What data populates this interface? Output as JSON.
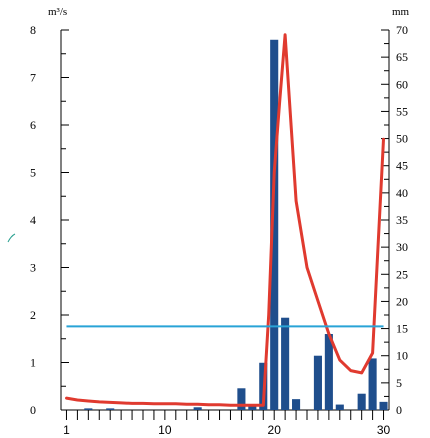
{
  "chart_data": {
    "type": "bar",
    "y_left": {
      "unit": "m³/s",
      "ylim": [
        0,
        8
      ],
      "ticks": [
        0,
        1,
        2,
        3,
        4,
        5,
        6,
        7,
        8
      ]
    },
    "y_right": {
      "unit": "mm",
      "ylim": [
        0,
        70
      ],
      "ticks": [
        0,
        5,
        10,
        15,
        20,
        25,
        30,
        35,
        40,
        45,
        50,
        55,
        60,
        65,
        70
      ]
    },
    "x": {
      "xlim": [
        1,
        30
      ],
      "tick_labels": [
        "1",
        "10",
        "20",
        "30"
      ]
    },
    "series": [
      {
        "type": "bar",
        "axis": "right",
        "color": "#1f4e8c",
        "x": [
          1,
          2,
          3,
          4,
          5,
          6,
          7,
          8,
          9,
          10,
          11,
          12,
          13,
          14,
          15,
          16,
          17,
          18,
          19,
          20,
          21,
          22,
          23,
          24,
          25,
          26,
          27,
          28,
          29,
          30
        ],
        "values": [
          0,
          0,
          0.3,
          0,
          0.3,
          0,
          0,
          0,
          0,
          0,
          0,
          0,
          0.5,
          0,
          0,
          0,
          4,
          1,
          8.7,
          68.2,
          17,
          2,
          0,
          10,
          14,
          1,
          0,
          3,
          9.5,
          1.5
        ]
      },
      {
        "type": "line",
        "axis": "left",
        "color": "#e03a2f",
        "x": [
          1,
          2,
          3,
          4,
          5,
          6,
          7,
          8,
          9,
          10,
          11,
          12,
          13,
          14,
          15,
          16,
          17,
          18,
          19,
          19.5,
          20,
          20.5,
          21,
          22,
          23,
          24,
          25,
          26,
          27,
          28,
          29,
          30
        ],
        "values": [
          0.25,
          0.21,
          0.19,
          0.17,
          0.16,
          0.15,
          0.14,
          0.14,
          0.13,
          0.13,
          0.13,
          0.12,
          0.12,
          0.11,
          0.11,
          0.1,
          0.1,
          0.1,
          0.1,
          2,
          5,
          6.5,
          7.9,
          4.4,
          3,
          2.3,
          1.6,
          1.05,
          0.83,
          0.78,
          1.2,
          5.7
        ]
      },
      {
        "type": "hline",
        "axis": "left",
        "color": "#29a3d6",
        "value": 1.76,
        "x_range": [
          1,
          30
        ]
      }
    ]
  }
}
